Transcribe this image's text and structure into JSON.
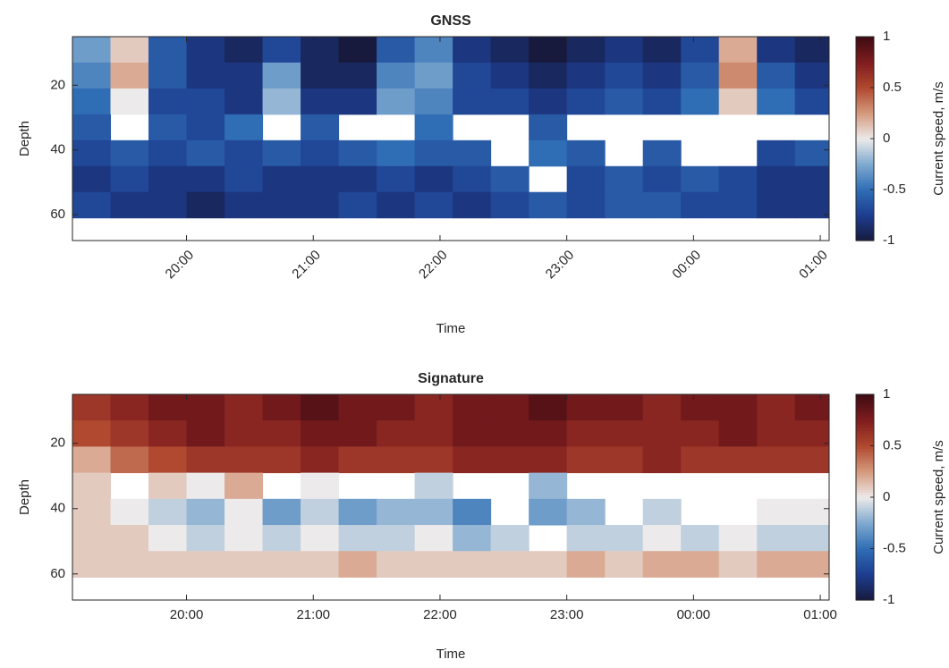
{
  "chart_data": [
    {
      "type": "heatmap",
      "title": "GNSS",
      "xlabel": "Time",
      "ylabel": "Depth",
      "colorbar_label": "Current speed, m/s",
      "xlim": [
        19.1,
        25.07
      ],
      "ylim": [
        5,
        68
      ],
      "y_reversed": true,
      "xtick_rotation": 45,
      "xticks": [
        {
          "value": 20,
          "label": "20:00"
        },
        {
          "value": 21,
          "label": "21:00"
        },
        {
          "value": 22,
          "label": "22:00"
        },
        {
          "value": 23,
          "label": "23:00"
        },
        {
          "value": 24,
          "label": "00:00"
        },
        {
          "value": 25,
          "label": "01:00"
        }
      ],
      "yticks": [
        20,
        40,
        60
      ],
      "clim": [
        -1,
        1
      ],
      "cticks": [
        -1,
        -0.5,
        0,
        0.5,
        1
      ],
      "colormap": [
        "#171a3d",
        "#1d3d8f",
        "#2f6db5",
        "#7fa9cf",
        "#eceaea",
        "#d59a7e",
        "#b0492f",
        "#7f1d1f",
        "#3d0b12"
      ],
      "x": [
        19.25,
        19.55,
        19.85,
        20.15,
        20.45,
        20.75,
        21.05,
        21.35,
        21.65,
        21.95,
        22.25,
        22.55,
        22.85,
        23.15,
        23.45,
        23.75,
        24.05,
        24.35,
        24.65,
        24.95
      ],
      "y": [
        9,
        17,
        25,
        33,
        41,
        49,
        57
      ],
      "z": [
        [
          -0.3,
          0.1,
          -0.6,
          -0.8,
          -0.9,
          -0.7,
          -0.9,
          -1,
          -0.6,
          -0.4,
          -0.8,
          -0.9,
          -1,
          -0.9,
          -0.8,
          -0.9,
          -0.7,
          0.2,
          -0.8,
          -0.9
        ],
        [
          -0.4,
          0.2,
          -0.6,
          -0.8,
          -0.8,
          -0.3,
          -0.9,
          -0.9,
          -0.4,
          -0.3,
          -0.7,
          -0.8,
          -0.9,
          -0.8,
          -0.7,
          -0.8,
          -0.6,
          0.3,
          -0.6,
          -0.8
        ],
        [
          -0.5,
          0,
          -0.7,
          -0.7,
          -0.8,
          -0.2,
          -0.8,
          -0.8,
          -0.3,
          -0.4,
          -0.7,
          -0.7,
          -0.8,
          -0.7,
          -0.6,
          -0.7,
          -0.5,
          0.1,
          -0.5,
          -0.7
        ],
        [
          -0.6,
          null,
          -0.6,
          -0.7,
          -0.5,
          null,
          -0.6,
          null,
          null,
          -0.5,
          null,
          null,
          -0.6,
          null,
          null,
          null,
          null,
          null,
          null,
          null
        ],
        [
          -0.7,
          -0.6,
          -0.7,
          -0.6,
          -0.7,
          -0.6,
          -0.7,
          -0.6,
          -0.5,
          -0.6,
          -0.6,
          null,
          -0.5,
          -0.6,
          null,
          -0.6,
          null,
          null,
          -0.7,
          -0.6
        ],
        [
          -0.8,
          -0.7,
          -0.8,
          -0.8,
          -0.7,
          -0.8,
          -0.8,
          -0.8,
          -0.7,
          -0.8,
          -0.7,
          -0.6,
          null,
          -0.7,
          -0.6,
          -0.7,
          -0.6,
          -0.7,
          -0.8,
          -0.8
        ],
        [
          -0.7,
          -0.8,
          -0.8,
          -0.9,
          -0.8,
          -0.8,
          -0.8,
          -0.7,
          -0.8,
          -0.7,
          -0.8,
          -0.7,
          -0.6,
          -0.7,
          -0.6,
          -0.6,
          -0.7,
          -0.7,
          -0.8,
          -0.8
        ]
      ]
    },
    {
      "type": "heatmap",
      "title": "Signature",
      "xlabel": "Time",
      "ylabel": "Depth",
      "colorbar_label": "Current speed, m/s",
      "xlim": [
        19.1,
        25.07
      ],
      "ylim": [
        5,
        68
      ],
      "y_reversed": true,
      "xtick_rotation": 0,
      "xticks": [
        {
          "value": 20,
          "label": "20:00"
        },
        {
          "value": 21,
          "label": "21:00"
        },
        {
          "value": 22,
          "label": "22:00"
        },
        {
          "value": 23,
          "label": "23:00"
        },
        {
          "value": 24,
          "label": "00:00"
        },
        {
          "value": 25,
          "label": "01:00"
        }
      ],
      "yticks": [
        20,
        40,
        60
      ],
      "clim": [
        -1,
        1
      ],
      "cticks": [
        -1,
        -0.5,
        0,
        0.5,
        1
      ],
      "colormap": [
        "#171a3d",
        "#1d3d8f",
        "#2f6db5",
        "#7fa9cf",
        "#eceaea",
        "#d59a7e",
        "#b0492f",
        "#7f1d1f",
        "#3d0b12"
      ],
      "x": [
        19.25,
        19.55,
        19.85,
        20.15,
        20.45,
        20.75,
        21.05,
        21.35,
        21.65,
        21.95,
        22.25,
        22.55,
        22.85,
        23.15,
        23.45,
        23.75,
        24.05,
        24.35,
        24.65,
        24.95
      ],
      "y": [
        9,
        17,
        25,
        33,
        41,
        49,
        57
      ],
      "z": [
        [
          0.6,
          0.7,
          0.8,
          0.8,
          0.7,
          0.8,
          0.9,
          0.8,
          0.8,
          0.7,
          0.8,
          0.8,
          0.9,
          0.8,
          0.8,
          0.7,
          0.8,
          0.8,
          0.7,
          0.8
        ],
        [
          0.5,
          0.6,
          0.7,
          0.8,
          0.7,
          0.7,
          0.8,
          0.8,
          0.7,
          0.7,
          0.8,
          0.8,
          0.8,
          0.7,
          0.7,
          0.7,
          0.7,
          0.8,
          0.7,
          0.7
        ],
        [
          0.2,
          0.4,
          0.5,
          0.6,
          0.6,
          0.6,
          0.7,
          0.6,
          0.6,
          0.6,
          0.7,
          0.7,
          0.7,
          0.6,
          0.6,
          0.7,
          0.6,
          0.6,
          0.6,
          0.6
        ],
        [
          0.1,
          null,
          0.1,
          0,
          0.2,
          null,
          0,
          null,
          null,
          -0.1,
          null,
          null,
          -0.2,
          null,
          null,
          null,
          null,
          null,
          null,
          null
        ],
        [
          0.1,
          0,
          -0.1,
          -0.2,
          0,
          -0.3,
          -0.1,
          -0.3,
          -0.2,
          -0.2,
          -0.4,
          null,
          -0.3,
          -0.2,
          null,
          -0.1,
          null,
          null,
          0,
          0
        ],
        [
          0.1,
          0.1,
          0,
          -0.1,
          0,
          -0.1,
          0,
          -0.1,
          -0.1,
          0,
          -0.2,
          -0.1,
          null,
          -0.1,
          -0.1,
          0,
          -0.1,
          0,
          -0.1,
          -0.1
        ],
        [
          0.1,
          0.1,
          0.1,
          0.1,
          0.1,
          0.1,
          0.1,
          0.2,
          0.1,
          0.1,
          0.1,
          0.1,
          0.1,
          0.2,
          0.1,
          0.2,
          0.2,
          0.1,
          0.2,
          0.2
        ]
      ]
    }
  ]
}
